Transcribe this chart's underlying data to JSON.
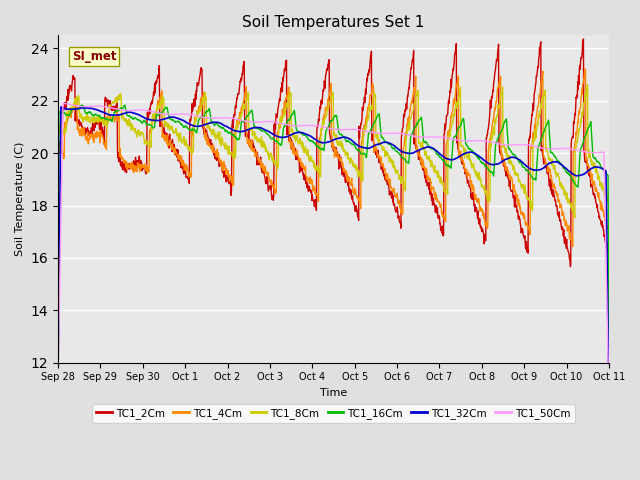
{
  "title": "Soil Temperatures Set 1",
  "xlabel": "Time",
  "ylabel": "Soil Temperature (C)",
  "ylim": [
    12,
    24.5
  ],
  "yticks": [
    12,
    14,
    16,
    18,
    20,
    22,
    24
  ],
  "annotation_text": "SI_met",
  "colors": {
    "TC1_2Cm": "#cc0000",
    "TC1_4Cm": "#ff8800",
    "TC1_8Cm": "#cccc00",
    "TC1_16Cm": "#00bb00",
    "TC1_32Cm": "#0000cc",
    "TC1_50Cm": "#ff99ff"
  },
  "legend_labels": [
    "TC1_2Cm",
    "TC1_4Cm",
    "TC1_8Cm",
    "TC1_16Cm",
    "TC1_32Cm",
    "TC1_50Cm"
  ],
  "background_color": "#e0e0e0",
  "plot_bg_color": "#e8e8e8",
  "xtick_labels": [
    "Sep 28",
    "Sep 29",
    "Sep 30",
    "Oct 1",
    "Oct 2",
    "Oct 3",
    "Oct 4",
    "Oct 5",
    "Oct 6",
    "Oct 7",
    "Oct 8",
    "Oct 9",
    "Oct 10",
    "Oct 11"
  ],
  "num_points": 1344,
  "figsize": [
    6.4,
    4.8
  ],
  "dpi": 100
}
